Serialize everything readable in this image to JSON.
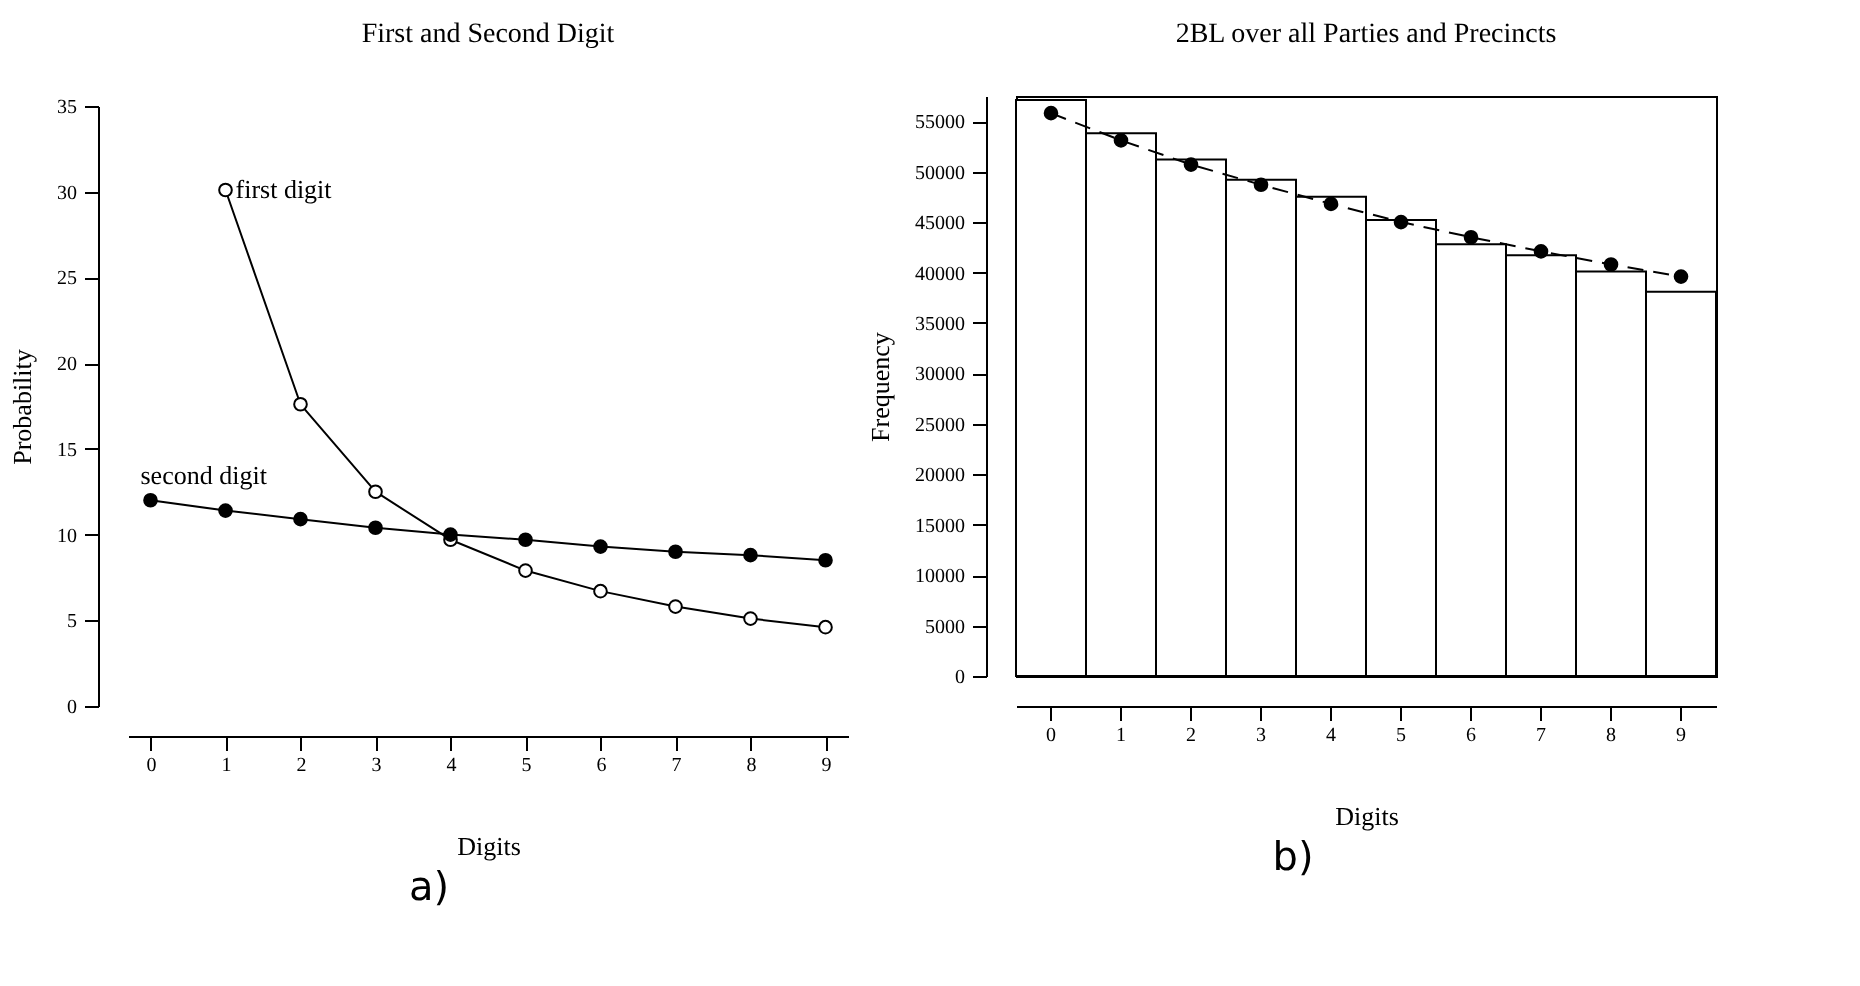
{
  "chart_data": [
    {
      "type": "line",
      "title": "First and Second Digit",
      "xlabel": "Digits",
      "ylabel": "Probability",
      "xlim": [
        -0.3,
        9.3
      ],
      "xticks": [
        0,
        1,
        2,
        3,
        4,
        5,
        6,
        7,
        8,
        9
      ],
      "ylim": [
        0,
        35
      ],
      "yticks": [
        0,
        5,
        10,
        15,
        20,
        25,
        30,
        35
      ],
      "grid": false,
      "marker": "circle",
      "line_style": "solid",
      "annotations": [
        "a)"
      ],
      "series": [
        {
          "name": "first digit",
          "color": "#000000",
          "x": [
            1,
            2,
            3,
            4,
            5,
            6,
            7,
            8,
            9
          ],
          "values": [
            30.1,
            17.6,
            12.5,
            9.7,
            7.9,
            6.7,
            5.8,
            5.1,
            4.6
          ]
        },
        {
          "name": "second digit",
          "color": "#000000",
          "x": [
            0,
            1,
            2,
            3,
            4,
            5,
            6,
            7,
            8,
            9
          ],
          "values": [
            12.0,
            11.4,
            10.9,
            10.4,
            10.0,
            9.7,
            9.3,
            9.0,
            8.8,
            8.5
          ]
        }
      ]
    },
    {
      "type": "bar",
      "title": "2BL over all Parties and Precincts",
      "xlabel": "Digits",
      "ylabel": "Frequency",
      "categories": [
        "0",
        "1",
        "2",
        "3",
        "4",
        "5",
        "6",
        "7",
        "8",
        "9"
      ],
      "ylim": [
        0,
        57500
      ],
      "yticks": [
        0,
        5000,
        10000,
        15000,
        20000,
        25000,
        30000,
        35000,
        40000,
        45000,
        50000,
        55000
      ],
      "grid": false,
      "annotations": [
        "b)"
      ],
      "series": [
        {
          "color": "#ffffff",
          "values": [
            57100,
            53800,
            51200,
            49200,
            47500,
            45200,
            42800,
            41700,
            40100,
            38100
          ]
        },
        {
          "type": "line",
          "color": "#000000",
          "marker": "circle",
          "line_style": "dashed",
          "values": [
            55800,
            53100,
            50700,
            48700,
            46800,
            45000,
            43500,
            42100,
            40800,
            39600
          ]
        }
      ]
    }
  ]
}
